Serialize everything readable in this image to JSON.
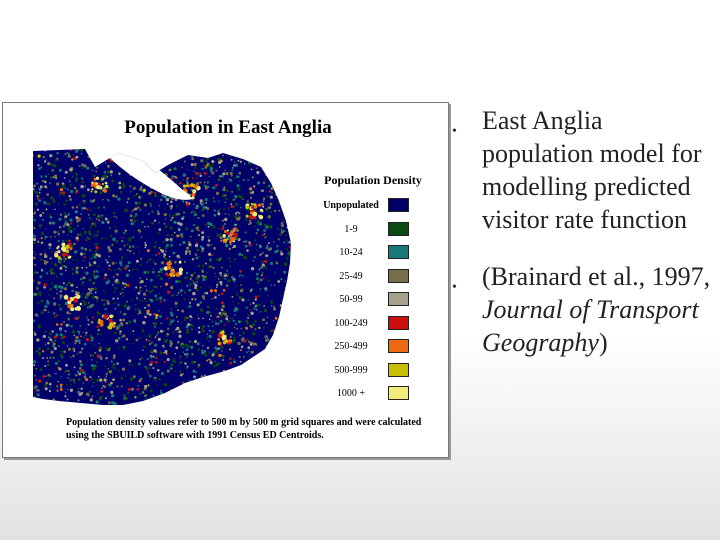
{
  "figure": {
    "title": "Population in East Anglia",
    "legend": {
      "title": "Population Density",
      "items": [
        {
          "label": "Unpopulated",
          "color": "#00006a"
        },
        {
          "label": "1-9",
          "color": "#0b4a12"
        },
        {
          "label": "10-24",
          "color": "#167a78"
        },
        {
          "label": "25-49",
          "color": "#786d4a"
        },
        {
          "label": "50-99",
          "color": "#a6a28a"
        },
        {
          "label": "100-249",
          "color": "#cc1010"
        },
        {
          "label": "250-499",
          "color": "#ee6a12"
        },
        {
          "label": "500-999",
          "color": "#c8c000"
        },
        {
          "label": "1000 +",
          "color": "#f1ec7a"
        }
      ]
    },
    "caption": "Population density values refer to 500 m by 500 m grid squares and were calculated using the SBUILD software with 1991 Census ED Centroids."
  },
  "bullets": {
    "b1": "East Anglia population model for modelling predicted visitor rate function",
    "b2_prefix": "(Brainard et al., 1997, ",
    "b2_italic": "Journal of Transport Geography",
    "b2_suffix": ")"
  }
}
